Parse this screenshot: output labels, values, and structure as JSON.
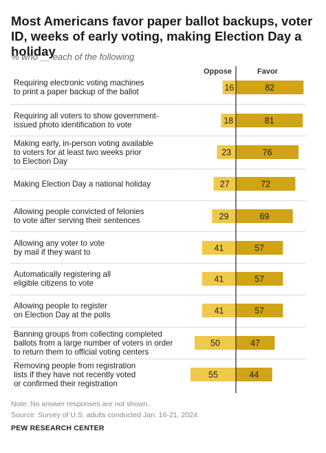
{
  "title": "Most Americans favor paper ballot backups, voter ID, weeks of early voting, making Election Day a holiday",
  "subtitle": "% who __ each of the following",
  "columns": {
    "oppose": "Oppose",
    "favor": "Favor"
  },
  "colors": {
    "oppose": "#f0c84a",
    "favor": "#d1a316",
    "divider": "#333333"
  },
  "chart_data": {
    "type": "bar",
    "orientation": "horizontal",
    "layout": "diverging",
    "categories": [
      "Requiring electronic voting machines to print a paper backup of the ballot",
      "Requiring all voters to show government-issued photo identification to vote",
      "Making early, in-person voting available to voters for at least two weeks prior to Election Day",
      "Making Election Day a national holiday",
      "Allowing people convicted of felonies to vote after serving their sentences",
      "Allowing any voter to vote by mail if they want to",
      "Automatically registering all eligible citizens to vote",
      "Allowing people to register on Election Day at the polls",
      "Banning groups from collecting completed ballots from a large number of voters in order to return them to official voting centers",
      "Removing people from registration lists if they have not recently voted or confirmed their registration"
    ],
    "label_lines": [
      [
        "Requiring electronic voting machines",
        "to print a paper backup of the ballot"
      ],
      [
        "Requiring all voters to show government-",
        "issued photo identification to vote"
      ],
      [
        "Making early, in-person voting available",
        "to voters for at least two weeks prior",
        "to Election Day"
      ],
      [
        "Making Election Day a national holiday"
      ],
      [
        "Allowing people convicted of felonies",
        "to vote after serving their sentences"
      ],
      [
        "Allowing any voter to vote",
        "by mail if they want to"
      ],
      [
        "Automatically registering all",
        "eligible citizens to vote"
      ],
      [
        "Allowing people to register",
        "on Election Day at the polls"
      ],
      [
        "Banning groups from collecting completed",
        "ballots from a large number of voters in order",
        "to return them to official voting centers"
      ],
      [
        "Removing people from registration",
        "lists if they have not recently voted",
        "or confirmed their registration"
      ]
    ],
    "series": [
      {
        "name": "Oppose",
        "values": [
          16,
          18,
          23,
          27,
          29,
          41,
          41,
          41,
          50,
          55
        ]
      },
      {
        "name": "Favor",
        "values": [
          82,
          81,
          76,
          72,
          69,
          57,
          57,
          57,
          47,
          44
        ]
      }
    ],
    "units": "%"
  },
  "notes": {
    "note": "Note: No answer responses are not shown.",
    "source": "Source: Survey of U.S. adults conducted Jan. 16-21, 2024.",
    "org": "PEW RESEARCH CENTER"
  }
}
